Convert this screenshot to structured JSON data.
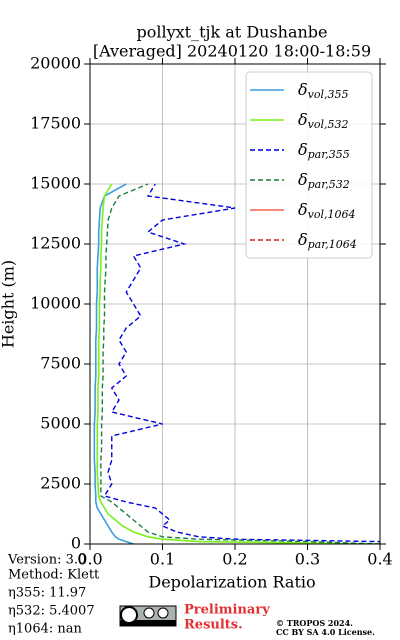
{
  "chart_data": {
    "type": "line",
    "title": [
      "pollyxt_tjk at Dushanbe",
      "[Averaged] 20240120 18:00-18:59"
    ],
    "xlabel": "Depolarization Ratio",
    "ylabel": "Height (m)",
    "xlim": [
      0,
      0.4
    ],
    "xticks": [
      {
        "value": 0,
        "label": "0.0"
      },
      0.1,
      0.2,
      0.3,
      0.4
    ],
    "ylim": [
      0,
      20000
    ],
    "yticks": [
      0,
      2500,
      5000,
      7500,
      10000,
      12500,
      15000,
      17500,
      20000
    ],
    "grid": true,
    "legend": "upper right",
    "y": [
      0,
      100,
      200,
      300,
      500,
      750,
      1000,
      1250,
      1500,
      1750,
      2000,
      2500,
      3000,
      3500,
      4000,
      4500,
      5000,
      5500,
      6000,
      6500,
      7000,
      7500,
      8000,
      8500,
      9000,
      9500,
      10000,
      10500,
      11000,
      11500,
      12000,
      12500,
      13000,
      13500,
      14000,
      14500,
      15000
    ],
    "series": [
      {
        "name": "δvol,355",
        "color": "#3b9ee0",
        "dash": false,
        "values": [
          0.06,
          0.05,
          0.04,
          0.035,
          0.03,
          0.025,
          0.02,
          0.015,
          0.01,
          0.008,
          0.008,
          0.007,
          0.007,
          0.006,
          0.006,
          0.006,
          0.006,
          0.007,
          0.007,
          0.007,
          0.008,
          0.008,
          0.008,
          0.008,
          0.009,
          0.009,
          0.009,
          0.01,
          0.01,
          0.01,
          0.011,
          0.012,
          0.012,
          0.013,
          0.014,
          0.02,
          0.05
        ]
      },
      {
        "name": "δvol,532",
        "color": "#7cf01c",
        "dash": false,
        "values": [
          0.4,
          0.15,
          0.1,
          0.08,
          0.06,
          0.045,
          0.035,
          0.025,
          0.02,
          0.015,
          0.012,
          0.011,
          0.01,
          0.01,
          0.01,
          0.01,
          0.01,
          0.011,
          0.011,
          0.011,
          0.012,
          0.012,
          0.012,
          0.012,
          0.013,
          0.013,
          0.013,
          0.014,
          0.014,
          0.015,
          0.015,
          0.016,
          0.016,
          0.017,
          0.018,
          0.02,
          0.03
        ]
      },
      {
        "name": "δpar,355",
        "color": "#0000e0",
        "dash": true,
        "values": [
          0.4,
          0.4,
          0.2,
          0.15,
          0.12,
          0.1,
          0.11,
          0.1,
          0.09,
          0.05,
          0.02,
          0.03,
          0.025,
          0.03,
          0.03,
          0.03,
          0.1,
          0.03,
          0.04,
          0.03,
          0.05,
          0.04,
          0.05,
          0.04,
          0.05,
          0.07,
          0.06,
          0.05,
          0.06,
          0.07,
          0.06,
          0.13,
          0.08,
          0.1,
          0.2,
          0.08,
          0.09
        ]
      },
      {
        "name": "δpar,532",
        "color": "#1b7c3d",
        "dash": true,
        "values": [
          0.4,
          0.3,
          0.15,
          0.1,
          0.08,
          0.07,
          0.06,
          0.05,
          0.04,
          0.03,
          0.015,
          0.015,
          0.015,
          0.015,
          0.016,
          0.016,
          0.016,
          0.017,
          0.017,
          0.017,
          0.018,
          0.018,
          0.018,
          0.019,
          0.019,
          0.02,
          0.02,
          0.02,
          0.021,
          0.022,
          0.022,
          0.023,
          0.024,
          0.025,
          0.03,
          0.04,
          0.08
        ]
      },
      {
        "name": "δvol,1064",
        "color": "#f4604a",
        "dash": false,
        "values": [
          null,
          null,
          null,
          null,
          null,
          null,
          null,
          null,
          null,
          null,
          null,
          null,
          null,
          null,
          null,
          null,
          null,
          null,
          null,
          null,
          null,
          null,
          null,
          null,
          null,
          null,
          null,
          null,
          null,
          null,
          null,
          null,
          null,
          null,
          null,
          null,
          null
        ]
      },
      {
        "name": "δpar,1064",
        "color": "#dd2222",
        "dash": true,
        "values": [
          null,
          null,
          null,
          null,
          null,
          null,
          null,
          null,
          null,
          null,
          null,
          null,
          null,
          null,
          null,
          null,
          null,
          null,
          null,
          null,
          null,
          null,
          null,
          null,
          null,
          null,
          null,
          null,
          null,
          null,
          null,
          null,
          null,
          null,
          null,
          null,
          null
        ]
      }
    ]
  },
  "info": [
    "Version: 3.0",
    "Method: Klett",
    "η355:  11.97",
    "η532: 5.4007",
    "η1064:    nan"
  ],
  "badge": [
    "Preliminary",
    "Results."
  ],
  "copyright": [
    "© TROPOS 2024.",
    "CC BY SA 4.0 License."
  ]
}
